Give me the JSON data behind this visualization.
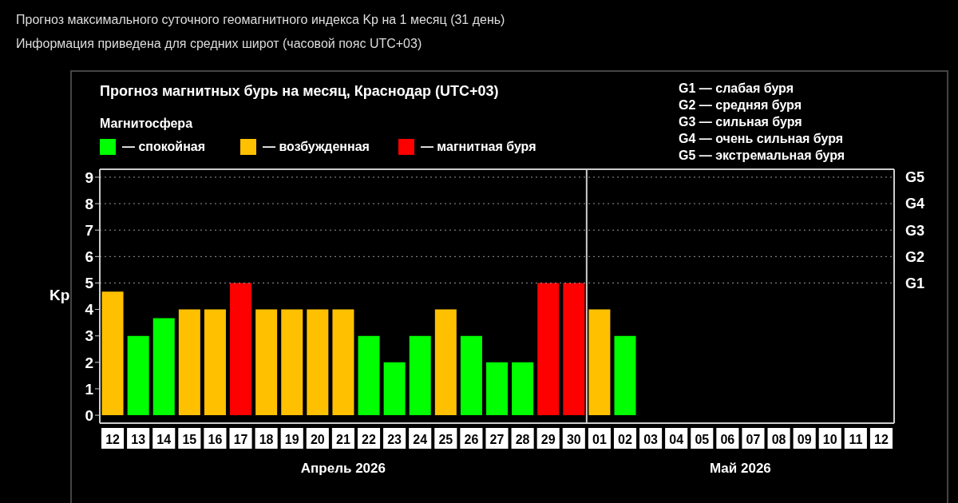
{
  "chart_data": {
    "type": "bar",
    "title": "Прогноз магнитных бурь на месяц, Краснодар (UTC+03)",
    "legend_title": "Магнитосфера",
    "ylabel": "Kp",
    "annotations": [
      "Прогноз максимального суточного геомагнитного индекса Kp на 1 месяц (31 день)",
      "Информация приведена для средних широт (часовой пояс UTC+03)",
      "G1 — слабая буря",
      "G2 — средняя буря",
      "G3 — сильная буря",
      "G4 — очень сильная буря",
      "G5 — экстремальная буря",
      "Апрель 2026",
      "Май 2026"
    ],
    "categories": [
      "12",
      "13",
      "14",
      "15",
      "16",
      "17",
      "18",
      "19",
      "20",
      "21",
      "22",
      "23",
      "24",
      "25",
      "26",
      "27",
      "28",
      "29",
      "30",
      "01",
      "02",
      "03",
      "04",
      "05",
      "06",
      "07",
      "08",
      "09",
      "10",
      "11",
      "12"
    ],
    "stacked": true,
    "series": [
      {
        "name": "— спокойная",
        "color": "#00ff00",
        "values": [
          null,
          3,
          3.67,
          null,
          null,
          null,
          null,
          null,
          null,
          null,
          3,
          2,
          3,
          null,
          3,
          2,
          2,
          null,
          null,
          null,
          3,
          null,
          null,
          null,
          null,
          null,
          null,
          null,
          null,
          null,
          null
        ]
      },
      {
        "name": "— возбужденная",
        "color": "#ffc000",
        "values": [
          4.67,
          null,
          null,
          4,
          4,
          null,
          4,
          4,
          4,
          4,
          null,
          null,
          null,
          4,
          null,
          null,
          null,
          null,
          null,
          4,
          null,
          null,
          null,
          null,
          null,
          null,
          null,
          null,
          null,
          null,
          null
        ]
      },
      {
        "name": "— магнитная буря",
        "color": "#ff0000",
        "values": [
          null,
          null,
          null,
          null,
          null,
          5,
          null,
          null,
          null,
          null,
          null,
          null,
          null,
          null,
          null,
          null,
          null,
          5,
          5,
          null,
          null,
          null,
          null,
          null,
          null,
          null,
          null,
          null,
          null,
          null,
          null
        ]
      }
    ],
    "ylim": [
      -0.3,
      9.3
    ],
    "yticks": [
      0,
      1,
      2,
      3,
      4,
      5,
      6,
      7,
      8,
      9
    ],
    "ref_lines": [
      {
        "axis": "x",
        "value": "01",
        "color": "#cccccc"
      },
      {
        "axis": "y",
        "value": 5,
        "label": "G1",
        "line_style": "dotted",
        "color": "#999999"
      },
      {
        "axis": "y",
        "value": 6,
        "label": "G2",
        "line_style": "dotted",
        "color": "#999999"
      },
      {
        "axis": "y",
        "value": 7,
        "label": "G3",
        "line_style": "dotted",
        "color": "#999999"
      },
      {
        "axis": "y",
        "value": 8,
        "label": "G4",
        "line_style": "dotted",
        "color": "#999999"
      },
      {
        "axis": "y",
        "value": 9,
        "label": "G5",
        "line_style": "dotted",
        "color": "#999999"
      }
    ],
    "legend": "top left"
  }
}
